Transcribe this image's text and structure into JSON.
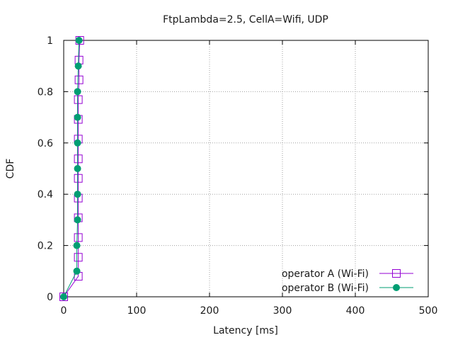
{
  "chart_data": {
    "type": "line",
    "title": "FtpLambda=2.5, CellA=Wifi, UDP",
    "xlabel": "Latency [ms]",
    "ylabel": "CDF",
    "xlim": [
      0,
      500
    ],
    "ylim": [
      0,
      1
    ],
    "xticks": [
      0,
      100,
      200,
      300,
      400,
      500
    ],
    "yticks": [
      0,
      0.2,
      0.4,
      0.6,
      0.8,
      1
    ],
    "ytick_labels": [
      "0",
      "0.2",
      "0.4",
      "0.6",
      "0.8",
      "1"
    ],
    "grid": true,
    "legend_position": "bottom-right",
    "series": [
      {
        "name": "operator A (Wi-Fi)",
        "color": "#9400d3",
        "marker": "open-square",
        "points": [
          [
            0,
            0
          ],
          [
            20,
            0.08
          ],
          [
            20,
            0.154
          ],
          [
            20,
            0.231
          ],
          [
            20,
            0.308
          ],
          [
            20,
            0.385
          ],
          [
            20,
            0.462
          ],
          [
            20,
            0.538
          ],
          [
            20,
            0.615
          ],
          [
            20,
            0.692
          ],
          [
            20,
            0.769
          ],
          [
            21,
            0.846
          ],
          [
            21,
            0.923
          ],
          [
            22,
            1.0
          ]
        ]
      },
      {
        "name": "operator B (Wi-Fi)",
        "color": "#009e73",
        "marker": "filled-circle",
        "points": [
          [
            0,
            0
          ],
          [
            18,
            0.1
          ],
          [
            18,
            0.2
          ],
          [
            19,
            0.3
          ],
          [
            19,
            0.4
          ],
          [
            19,
            0.5
          ],
          [
            19,
            0.6
          ],
          [
            19,
            0.7
          ],
          [
            19,
            0.8
          ],
          [
            20,
            0.9
          ],
          [
            21,
            1.0
          ]
        ]
      }
    ]
  }
}
